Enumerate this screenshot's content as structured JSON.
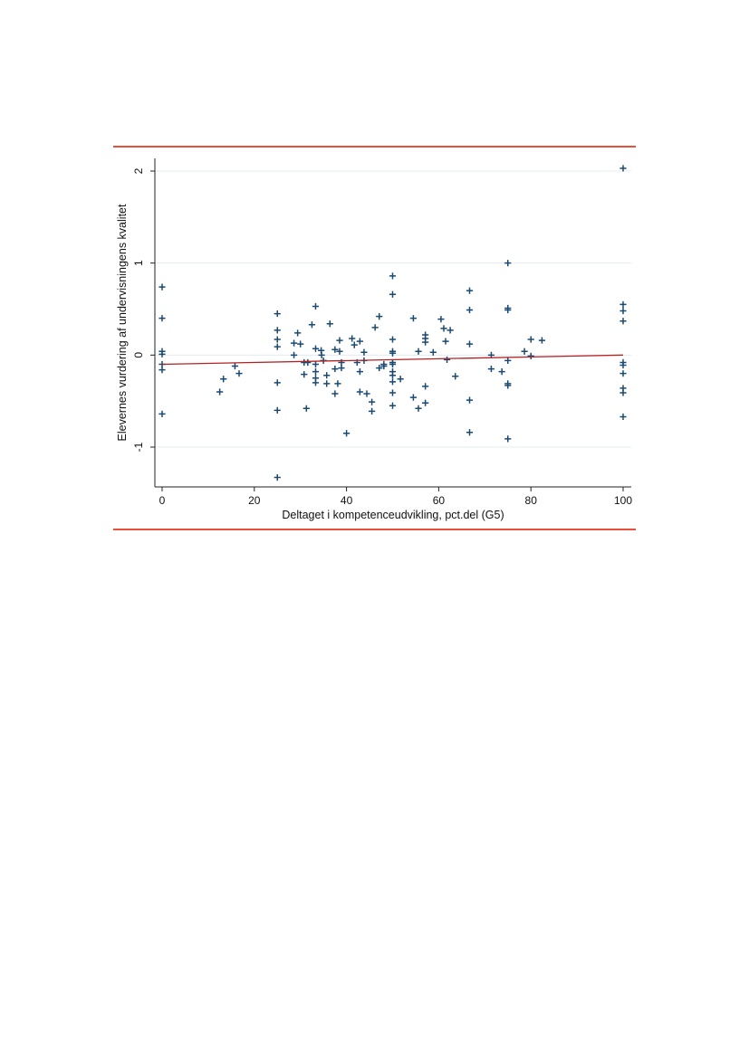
{
  "colors": {
    "rule": "#e8503a",
    "marker": "#1a4a72",
    "fit_line": "#b22222",
    "grid": "#e3ecf3",
    "axis": "#222222"
  },
  "chart_data": {
    "type": "scatter",
    "title": "",
    "xlabel": "Deltaget i kompetenceudvikling, pct.del (G5)",
    "ylabel": "Elevernes vurdering af undervisningens kvalitet",
    "xlim": [
      0,
      100
    ],
    "ylim": [
      -1.4,
      2.1
    ],
    "xticks": [
      0,
      20,
      40,
      60,
      80,
      100
    ],
    "yticks": [
      -1,
      0,
      1,
      2
    ],
    "grid": true,
    "marker": "plus",
    "points": [
      [
        0,
        0.74
      ],
      [
        0,
        0.4
      ],
      [
        0,
        0.04
      ],
      [
        0,
        0.01
      ],
      [
        0,
        -0.1
      ],
      [
        0,
        -0.16
      ],
      [
        0,
        -0.64
      ],
      [
        12.5,
        -0.4
      ],
      [
        13.3,
        -0.26
      ],
      [
        15.8,
        -0.12
      ],
      [
        16.7,
        -0.2
      ],
      [
        25,
        0.45
      ],
      [
        25,
        0.27
      ],
      [
        25,
        0.17
      ],
      [
        25,
        0.09
      ],
      [
        25,
        -0.3
      ],
      [
        25,
        -0.6
      ],
      [
        25,
        -1.33
      ],
      [
        28.6,
        0.13
      ],
      [
        28.6,
        0.0
      ],
      [
        29.4,
        0.24
      ],
      [
        30,
        0.12
      ],
      [
        30.8,
        -0.08
      ],
      [
        30.8,
        -0.21
      ],
      [
        31.3,
        -0.58
      ],
      [
        31.6,
        -0.08
      ],
      [
        32.5,
        0.33
      ],
      [
        33.3,
        0.53
      ],
      [
        33.3,
        0.07
      ],
      [
        33.3,
        -0.1
      ],
      [
        33.3,
        -0.18
      ],
      [
        33.3,
        -0.25
      ],
      [
        33.3,
        -0.3
      ],
      [
        34.5,
        0.05
      ],
      [
        34.6,
        0.0
      ],
      [
        35,
        -0.06
      ],
      [
        35.7,
        -0.22
      ],
      [
        35.7,
        -0.31
      ],
      [
        36.4,
        0.34
      ],
      [
        37.5,
        0.06
      ],
      [
        37.5,
        -0.15
      ],
      [
        37.5,
        -0.42
      ],
      [
        38.1,
        -0.31
      ],
      [
        38.5,
        0.16
      ],
      [
        38.5,
        0.04
      ],
      [
        38.9,
        -0.08
      ],
      [
        38.9,
        -0.14
      ],
      [
        40,
        -0.85
      ],
      [
        41.2,
        0.18
      ],
      [
        41.7,
        0.11
      ],
      [
        42.3,
        -0.08
      ],
      [
        42.9,
        0.15
      ],
      [
        42.9,
        -0.18
      ],
      [
        42.9,
        -0.4
      ],
      [
        43.8,
        0.03
      ],
      [
        43.8,
        -0.06
      ],
      [
        44.4,
        -0.42
      ],
      [
        45.5,
        -0.51
      ],
      [
        45.5,
        -0.61
      ],
      [
        46.2,
        0.3
      ],
      [
        47.1,
        0.42
      ],
      [
        47.1,
        -0.14
      ],
      [
        48.1,
        -0.1
      ],
      [
        48.1,
        -0.12
      ],
      [
        50,
        0.86
      ],
      [
        50,
        0.66
      ],
      [
        50,
        0.17
      ],
      [
        50,
        0.04
      ],
      [
        50,
        0.02
      ],
      [
        50,
        -0.08
      ],
      [
        50,
        -0.1
      ],
      [
        50,
        -0.18
      ],
      [
        50,
        -0.22
      ],
      [
        50,
        -0.29
      ],
      [
        50,
        -0.41
      ],
      [
        50,
        -0.55
      ],
      [
        51.7,
        -0.26
      ],
      [
        54.5,
        0.4
      ],
      [
        54.5,
        -0.46
      ],
      [
        55.6,
        0.04
      ],
      [
        55.6,
        -0.58
      ],
      [
        57.1,
        0.22
      ],
      [
        57.1,
        0.18
      ],
      [
        57.1,
        0.14
      ],
      [
        57.1,
        -0.34
      ],
      [
        57.1,
        -0.52
      ],
      [
        58.8,
        0.03
      ],
      [
        60.5,
        0.39
      ],
      [
        61.1,
        0.29
      ],
      [
        61.5,
        0.15
      ],
      [
        61.8,
        -0.05
      ],
      [
        62.5,
        0.27
      ],
      [
        63.6,
        -0.23
      ],
      [
        66.7,
        0.7
      ],
      [
        66.7,
        0.49
      ],
      [
        66.7,
        0.12
      ],
      [
        66.7,
        -0.49
      ],
      [
        66.7,
        -0.84
      ],
      [
        71.4,
        0.0
      ],
      [
        71.4,
        -0.15
      ],
      [
        73.7,
        -0.18
      ],
      [
        75,
        1.0
      ],
      [
        75,
        0.51
      ],
      [
        75,
        0.49
      ],
      [
        75,
        -0.06
      ],
      [
        75,
        -0.31
      ],
      [
        75,
        -0.33
      ],
      [
        75,
        -0.91
      ],
      [
        78.6,
        0.04
      ],
      [
        80,
        0.17
      ],
      [
        80,
        -0.01
      ],
      [
        82.4,
        0.16
      ],
      [
        100,
        2.03
      ],
      [
        100,
        0.55
      ],
      [
        100,
        0.48
      ],
      [
        100,
        0.37
      ],
      [
        100,
        -0.08
      ],
      [
        100,
        -0.11
      ],
      [
        100,
        -0.2
      ],
      [
        100,
        -0.36
      ],
      [
        100,
        -0.41
      ],
      [
        100,
        -0.67
      ]
    ],
    "fit_line": {
      "x": [
        0,
        100
      ],
      "y": [
        -0.1,
        0.0
      ]
    }
  }
}
